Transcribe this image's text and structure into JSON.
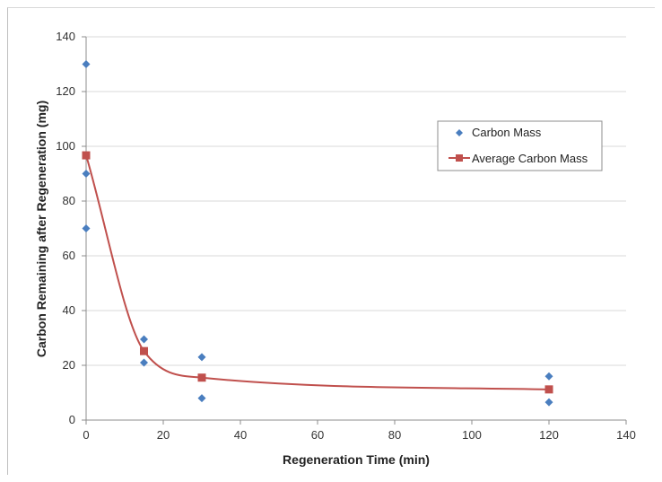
{
  "chart_data": {
    "type": "scatter",
    "title": "",
    "xlabel": "Regeneration Time (min)",
    "ylabel": "Carbon Remaining after Regeneration (mg)",
    "xlim": [
      0,
      140
    ],
    "ylim": [
      0,
      140
    ],
    "xticks": [
      0,
      20,
      40,
      60,
      80,
      100,
      120,
      140
    ],
    "yticks": [
      0,
      20,
      40,
      60,
      80,
      100,
      120,
      140
    ],
    "grid": "horizontal",
    "legend_position": "right",
    "series": [
      {
        "name": "Carbon Mass",
        "type": "scatter",
        "marker": "diamond",
        "color": "#4a7ebf",
        "points": [
          {
            "x": 0,
            "y": 130
          },
          {
            "x": 0,
            "y": 90
          },
          {
            "x": 0,
            "y": 70
          },
          {
            "x": 15,
            "y": 29.5
          },
          {
            "x": 15,
            "y": 21
          },
          {
            "x": 30,
            "y": 23
          },
          {
            "x": 30,
            "y": 8
          },
          {
            "x": 120,
            "y": 16
          },
          {
            "x": 120,
            "y": 6.5
          }
        ]
      },
      {
        "name": "Average Carbon Mass",
        "type": "line",
        "smooth": true,
        "marker": "square",
        "color": "#c0504d",
        "points": [
          {
            "x": 0,
            "y": 96.7
          },
          {
            "x": 15,
            "y": 25.2
          },
          {
            "x": 30,
            "y": 15.5
          },
          {
            "x": 120,
            "y": 11.2
          }
        ]
      }
    ]
  }
}
